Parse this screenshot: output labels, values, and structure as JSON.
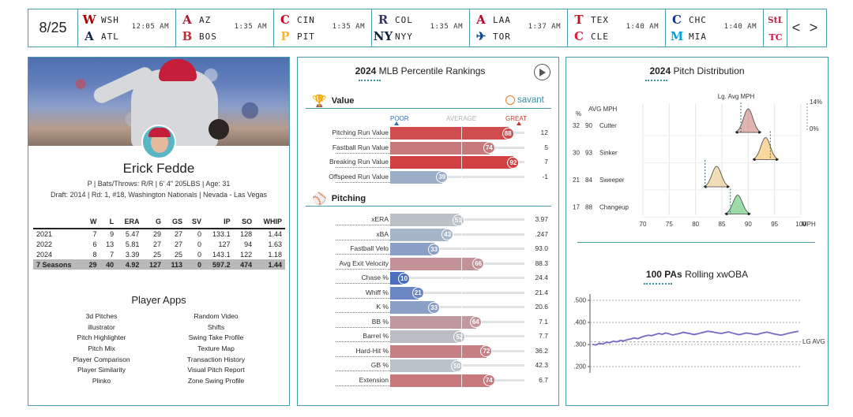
{
  "scoreboard": {
    "date": "8/25",
    "games": [
      {
        "away": "WSH",
        "home": "ATL",
        "time": "12:05 AM",
        "away_color": "#ab0003",
        "home_color": "#13274f",
        "away_glyph": "W",
        "home_glyph": "A"
      },
      {
        "away": "AZ",
        "home": "BOS",
        "time": "1:35 AM",
        "away_color": "#a71930",
        "home_color": "#bd3039",
        "away_glyph": "A",
        "home_glyph": "B"
      },
      {
        "away": "CIN",
        "home": "PIT",
        "time": "1:35 AM",
        "away_color": "#c6011f",
        "home_color": "#fdb827",
        "away_glyph": "C",
        "home_glyph": "P"
      },
      {
        "away": "COL",
        "home": "NYY",
        "time": "1:35 AM",
        "away_color": "#333366",
        "home_color": "#0c2340",
        "away_glyph": "R",
        "home_glyph": "NY"
      },
      {
        "away": "LAA",
        "home": "TOR",
        "time": "1:37 AM",
        "away_color": "#ba0021",
        "home_color": "#134a8e",
        "away_glyph": "A",
        "home_glyph": "✈"
      },
      {
        "away": "TEX",
        "home": "CLE",
        "time": "1:40 AM",
        "away_color": "#c0111f",
        "home_color": "#e31937",
        "away_glyph": "T",
        "home_glyph": "C"
      },
      {
        "away": "CHC",
        "home": "MIA",
        "time": "1:40 AM",
        "away_color": "#0e3386",
        "home_color": "#00a3e0",
        "away_glyph": "C",
        "home_glyph": "M"
      }
    ],
    "extra_logos": [
      {
        "glyph": "StL",
        "color": "#c41e3a"
      },
      {
        "glyph": "TC",
        "color": "#d31145"
      }
    ],
    "prev_label": "<",
    "next_label": ">"
  },
  "player": {
    "name": "Erick Fedde",
    "info": "P | Bats/Throws: R/R | 6' 4\" 205LBS | Age: 31",
    "draft": "Draft: 2014 | Rd: 1, #18, Washington Nationals | Nevada - Las Vegas",
    "stats_headers": [
      "",
      "W",
      "L",
      "ERA",
      "G",
      "GS",
      "SV",
      "IP",
      "SO",
      "WHIP"
    ],
    "stats_rows": [
      [
        "2021",
        "7",
        "9",
        "5.47",
        "29",
        "27",
        "0",
        "133.1",
        "128",
        "1.44"
      ],
      [
        "2022",
        "6",
        "13",
        "5.81",
        "27",
        "27",
        "0",
        "127",
        "94",
        "1.63"
      ],
      [
        "2024",
        "8",
        "7",
        "3.39",
        "25",
        "25",
        "0",
        "143.1",
        "122",
        "1.18"
      ]
    ],
    "stats_total": [
      "7 Seasons",
      "29",
      "40",
      "4.92",
      "127",
      "113",
      "0",
      "597.2",
      "474",
      "1.44"
    ],
    "apps_title": "Player Apps",
    "apps": [
      "3d Pitches",
      "Random Video",
      "illustrator",
      "Shifts",
      "Pitch Highlighter",
      "Swing Take Profile",
      "Pitch Mix",
      "Texture Map",
      "Player Comparison",
      "Transaction History",
      "Player Similarity",
      "Visual Pitch Report",
      "Plinko",
      "Zone Swing Profile"
    ]
  },
  "percentiles": {
    "title_year": "2024",
    "title_rest": "MLB Percentile Rankings",
    "value_heading": "Value",
    "pitching_heading": "Pitching",
    "brand": "savant",
    "scale": {
      "poor": "POOR",
      "average": "AVERAGE",
      "great": "GREAT"
    },
    "value_metrics": [
      {
        "label": "Pitching Run Value",
        "pct": 88,
        "value": "12"
      },
      {
        "label": "Fastball Run Value",
        "pct": 74,
        "value": "5"
      },
      {
        "label": "Breaking Run Value",
        "pct": 92,
        "value": "7"
      },
      {
        "label": "Offspeed Run Value",
        "pct": 39,
        "value": "-1"
      }
    ],
    "pitching_metrics": [
      {
        "label": "xERA",
        "pct": 51,
        "value": "3.97"
      },
      {
        "label": "xBA",
        "pct": 43,
        "value": ".247"
      },
      {
        "label": "Fastball Velo",
        "pct": 33,
        "value": "93.0"
      },
      {
        "label": "Avg Exit Velocity",
        "pct": 66,
        "value": "88.3"
      },
      {
        "label": "Chase %",
        "pct": 10,
        "value": "24.4"
      },
      {
        "label": "Whiff %",
        "pct": 21,
        "value": "21.4"
      },
      {
        "label": "K %",
        "pct": 33,
        "value": "20.6"
      },
      {
        "label": "BB %",
        "pct": 64,
        "value": "7.1"
      },
      {
        "label": "Barrel %",
        "pct": 52,
        "value": "7.7"
      },
      {
        "label": "Hard-Hit %",
        "pct": 72,
        "value": "36.2"
      },
      {
        "label": "GB %",
        "pct": 50,
        "value": "42.3"
      },
      {
        "label": "Extension",
        "pct": 74,
        "value": "6.7"
      }
    ]
  },
  "pitch_distribution": {
    "title_year": "2024",
    "title_rest": "Pitch Distribution",
    "lg_avg_label": "Lg. Avg MPH",
    "col_pct": "%",
    "col_mph": "AVG MPH",
    "pct_top": "14%",
    "pct_bottom": "0%",
    "x_ticks": [
      "70",
      "75",
      "80",
      "85",
      "90",
      "95",
      "100"
    ],
    "x_unit": "MPH",
    "pitches": [
      {
        "pct": "32",
        "mph": "90",
        "name": "Cutter",
        "color": "#c9766e",
        "lg_avg": 88.6,
        "peak": 90.0
      },
      {
        "pct": "30",
        "mph": "93",
        "name": "Sinker",
        "color": "#f2b84b",
        "lg_avg": 94.2,
        "peak": 93.3
      },
      {
        "pct": "21",
        "mph": "84",
        "name": "Sweeper",
        "color": "#e8c27a",
        "lg_avg": 81.8,
        "peak": 84.0
      },
      {
        "pct": "17",
        "mph": "88",
        "name": "Changeup",
        "color": "#4cc062",
        "lg_avg": 86.6,
        "peak": 88.0
      }
    ]
  },
  "xwoba": {
    "title_bold": "100 PAs",
    "title_rest": "Rolling xwOBA",
    "y_ticks": [
      ".500",
      ".400",
      ".300",
      ".200"
    ],
    "lg_avg_label": "LG AVG",
    "lg_avg": 0.312,
    "series": [
      0.3,
      0.298,
      0.305,
      0.302,
      0.31,
      0.308,
      0.315,
      0.312,
      0.318,
      0.316,
      0.322,
      0.325,
      0.33,
      0.326,
      0.333,
      0.338,
      0.342,
      0.34,
      0.345,
      0.35,
      0.346,
      0.352,
      0.348,
      0.343,
      0.347,
      0.35,
      0.355,
      0.352,
      0.349,
      0.345,
      0.348,
      0.352,
      0.356,
      0.36,
      0.358,
      0.355,
      0.352,
      0.35,
      0.354,
      0.357,
      0.352,
      0.348,
      0.344,
      0.348,
      0.352,
      0.35,
      0.347,
      0.345,
      0.349,
      0.353,
      0.356,
      0.352,
      0.348,
      0.345,
      0.342,
      0.346,
      0.35,
      0.354,
      0.357,
      0.36
    ]
  }
}
